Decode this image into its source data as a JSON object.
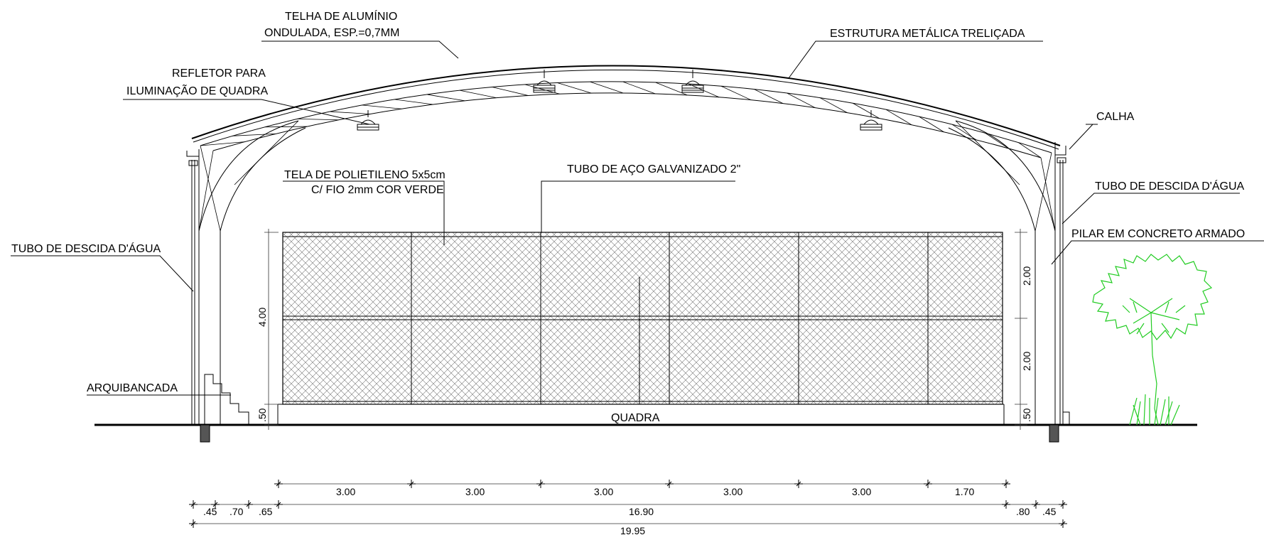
{
  "labels": {
    "telha_line1": "TELHA DE ALUMÍNIO",
    "telha_line2": "ONDULADA, ESP.=0,7MM",
    "estrutura": "ESTRUTURA METÁLICA TRELIÇADA",
    "refletor_line1": "REFLETOR PARA",
    "refletor_line2": "ILUMINAÇÃO DE QUADRA",
    "calha": "CALHA",
    "tela_line1": "TELA DE POLIETILENO 5x5cm",
    "tela_line2": "C/ FIO 2mm COR VERDE",
    "tubo_aco": "TUBO DE AÇO GALVANIZADO 2\"",
    "tubo_descida_left": "TUBO DE DESCIDA D'ÁGUA",
    "tubo_descida_right": "TUBO DE DESCIDA D'ÁGUA",
    "pilar": "PILAR EM CONCRETO ARMADO",
    "arquibancada": "ARQUIBANCADA",
    "quadra": "QUADRA"
  },
  "dimensions": {
    "left_height_total": "4.00",
    "left_base": ".50",
    "right_upper": "2.00",
    "right_lower": "2.00",
    "right_base": ".50",
    "row1": [
      "3.00",
      "3.00",
      "3.00",
      "3.00",
      "3.00",
      "1.70"
    ],
    "row2": [
      ".45",
      ".70",
      ".65",
      "16.90",
      ".80",
      ".45"
    ],
    "total": "19.95"
  },
  "colors": {
    "tree": "#22cc22",
    "line": "#000000"
  }
}
